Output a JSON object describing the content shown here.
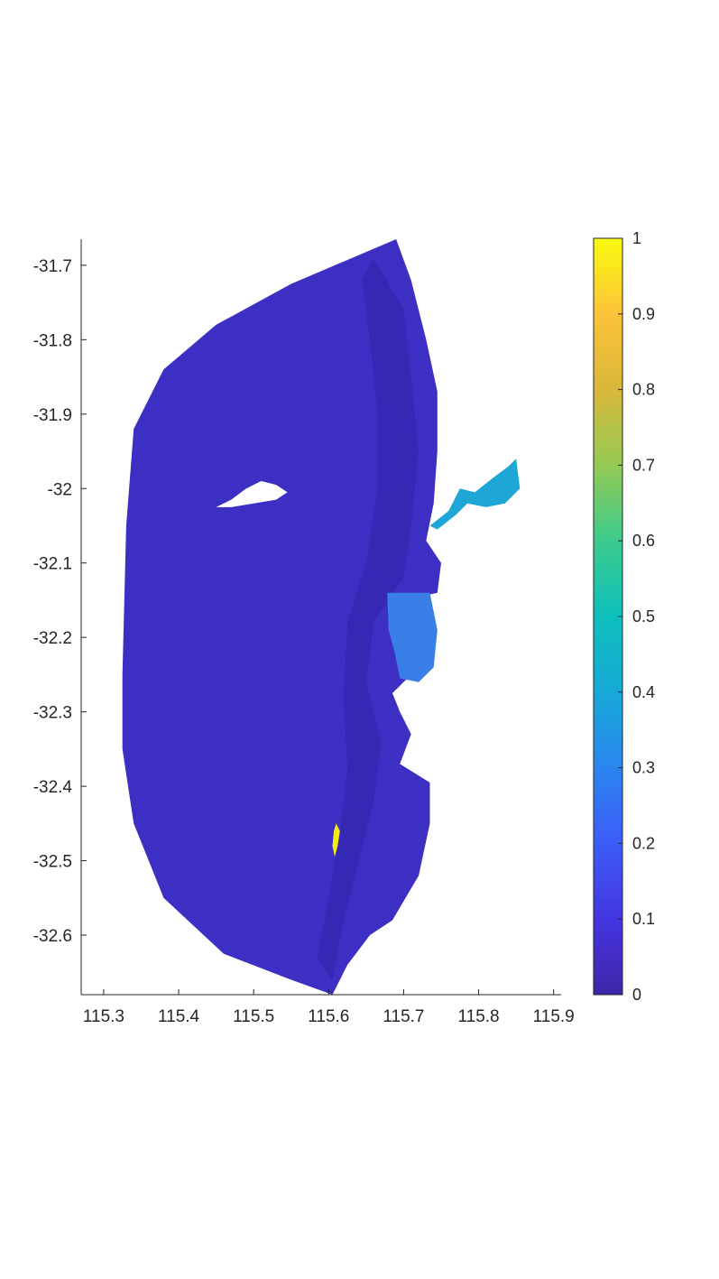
{
  "chart_data": {
    "type": "heatmap",
    "title": "",
    "xlabel": "",
    "ylabel": "",
    "xlim": [
      115.27,
      115.91
    ],
    "ylim": [
      -32.68,
      -31.665
    ],
    "x_ticks": [
      115.3,
      115.4,
      115.5,
      115.6,
      115.7,
      115.8,
      115.9
    ],
    "x_tick_labels": [
      "115.3",
      "115.4",
      "115.5",
      "115.6",
      "115.7",
      "115.8",
      "115.9"
    ],
    "y_ticks": [
      -31.7,
      -31.8,
      -31.9,
      -32,
      -32.1,
      -32.2,
      -32.3,
      -32.4,
      -32.5,
      -32.6
    ],
    "y_tick_labels": [
      "-31.7",
      "-31.8",
      "-31.9",
      "-32",
      "-32.1",
      "-32.2",
      "-32.3",
      "-32.4",
      "-32.5",
      "-32.6"
    ],
    "grid": false,
    "colormap": "parula",
    "colorbar": {
      "limits": [
        0,
        1
      ],
      "ticks": [
        0,
        0.1,
        0.2,
        0.3,
        0.4,
        0.5,
        0.6,
        0.7,
        0.8,
        0.9,
        1
      ],
      "tick_labels": [
        "0",
        "0.1",
        "0.2",
        "0.3",
        "0.4",
        "0.5",
        "0.6",
        "0.7",
        "0.8",
        "0.9",
        "1"
      ],
      "placement": "right"
    },
    "regions": [
      {
        "id": "main-domain",
        "value": 0.05,
        "color": "#3e2fc4",
        "outline": [
          [
            115.69,
            -31.665
          ],
          [
            115.71,
            -31.72
          ],
          [
            115.73,
            -31.8
          ],
          [
            115.745,
            -31.87
          ],
          [
            115.745,
            -31.95
          ],
          [
            115.74,
            -32.02
          ],
          [
            115.73,
            -32.07
          ],
          [
            115.75,
            -32.1
          ],
          [
            115.745,
            -32.14
          ],
          [
            115.68,
            -32.155
          ],
          [
            115.69,
            -32.22
          ],
          [
            115.71,
            -32.25
          ],
          [
            115.685,
            -32.275
          ],
          [
            115.695,
            -32.3
          ],
          [
            115.71,
            -32.33
          ],
          [
            115.695,
            -32.37
          ],
          [
            115.735,
            -32.395
          ],
          [
            115.735,
            -32.45
          ],
          [
            115.72,
            -32.52
          ],
          [
            115.685,
            -32.58
          ],
          [
            115.655,
            -32.6
          ],
          [
            115.625,
            -32.64
          ],
          [
            115.605,
            -32.68
          ],
          [
            115.55,
            -32.66
          ],
          [
            115.46,
            -32.625
          ],
          [
            115.38,
            -32.55
          ],
          [
            115.34,
            -32.45
          ],
          [
            115.325,
            -32.35
          ],
          [
            115.325,
            -32.25
          ],
          [
            115.33,
            -32.05
          ],
          [
            115.34,
            -31.92
          ],
          [
            115.38,
            -31.84
          ],
          [
            115.45,
            -31.78
          ],
          [
            115.55,
            -31.725
          ],
          [
            115.69,
            -31.665
          ]
        ]
      },
      {
        "id": "darker-shoal-band",
        "value": 0.03,
        "color": "#3528b4",
        "outline": [
          [
            115.66,
            -31.69
          ],
          [
            115.7,
            -31.76
          ],
          [
            115.71,
            -31.85
          ],
          [
            115.72,
            -31.95
          ],
          [
            115.71,
            -32.05
          ],
          [
            115.7,
            -32.12
          ],
          [
            115.66,
            -32.18
          ],
          [
            115.65,
            -32.26
          ],
          [
            115.67,
            -32.34
          ],
          [
            115.66,
            -32.42
          ],
          [
            115.64,
            -32.5
          ],
          [
            115.62,
            -32.58
          ],
          [
            115.605,
            -32.66
          ],
          [
            115.585,
            -32.63
          ],
          [
            115.6,
            -32.55
          ],
          [
            115.615,
            -32.46
          ],
          [
            115.625,
            -32.38
          ],
          [
            115.62,
            -32.28
          ],
          [
            115.625,
            -32.18
          ],
          [
            115.65,
            -32.1
          ],
          [
            115.665,
            -32.0
          ],
          [
            115.665,
            -31.9
          ],
          [
            115.655,
            -31.8
          ],
          [
            115.645,
            -31.72
          ]
        ]
      },
      {
        "id": "estuary-river",
        "value": 0.35,
        "color": "#1ea6d6",
        "outline": [
          [
            115.735,
            -32.05
          ],
          [
            115.76,
            -32.03
          ],
          [
            115.775,
            -32.0
          ],
          [
            115.795,
            -32.005
          ],
          [
            115.82,
            -31.985
          ],
          [
            115.84,
            -31.97
          ],
          [
            115.85,
            -31.96
          ],
          [
            115.855,
            -32.0
          ],
          [
            115.835,
            -32.02
          ],
          [
            115.81,
            -32.025
          ],
          [
            115.785,
            -32.02
          ],
          [
            115.77,
            -32.035
          ],
          [
            115.745,
            -32.055
          ]
        ]
      },
      {
        "id": "lagoon-sound",
        "value": 0.22,
        "color": "#3a7ee8",
        "outline": [
          [
            115.678,
            -32.14
          ],
          [
            115.735,
            -32.14
          ],
          [
            115.745,
            -32.19
          ],
          [
            115.74,
            -32.24
          ],
          [
            115.72,
            -32.26
          ],
          [
            115.695,
            -32.255
          ],
          [
            115.688,
            -32.22
          ],
          [
            115.68,
            -32.19
          ]
        ]
      },
      {
        "id": "yellow-patch",
        "value": 1.0,
        "color": "#f5ea13",
        "outline": [
          [
            115.61,
            -32.45
          ],
          [
            115.615,
            -32.46
          ],
          [
            115.612,
            -32.48
          ],
          [
            115.608,
            -32.495
          ],
          [
            115.605,
            -32.48
          ],
          [
            115.607,
            -32.46
          ]
        ]
      }
    ],
    "holes": [
      {
        "id": "island",
        "outline": [
          [
            115.45,
            -32.025
          ],
          [
            115.47,
            -32.015
          ],
          [
            115.49,
            -32.0
          ],
          [
            115.51,
            -31.99
          ],
          [
            115.53,
            -31.995
          ],
          [
            115.545,
            -32.005
          ],
          [
            115.53,
            -32.015
          ],
          [
            115.5,
            -32.02
          ],
          [
            115.47,
            -32.025
          ]
        ]
      }
    ]
  }
}
